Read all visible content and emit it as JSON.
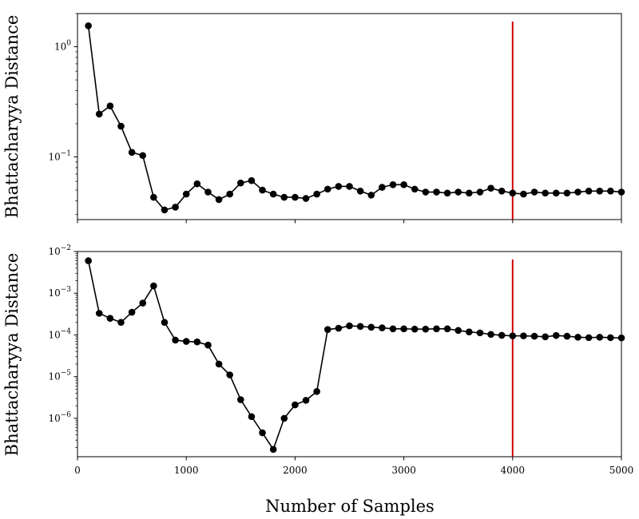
{
  "chart_data": [
    {
      "type": "line",
      "ylabel": "Bhattacharyya Distance",
      "xlabel": "",
      "yscale": "log",
      "xlim": [
        0,
        5000
      ],
      "ylim": [
        0.027,
        2.0
      ],
      "x_ticks_shown_without_labels": [
        0,
        1000,
        2000,
        3000,
        4000,
        5000
      ],
      "y_ticks": [
        {
          "value": 1,
          "label": "10",
          "exp": "0"
        },
        {
          "value": 0.1,
          "label": "10",
          "exp": "−1"
        }
      ],
      "marker": "circle",
      "series_color": "#000000",
      "vline": {
        "x": 4000,
        "color": "#cc0000"
      },
      "series": [
        {
          "x": [
            100,
            200,
            300,
            400,
            500,
            600,
            700,
            800,
            900,
            1000,
            1100,
            1200,
            1300,
            1400,
            1500,
            1600,
            1700,
            1800,
            1900,
            2000,
            2100,
            2200,
            2300,
            2400,
            2500,
            2600,
            2700,
            2800,
            2900,
            3000,
            3100,
            3200,
            3300,
            3400,
            3500,
            3600,
            3700,
            3800,
            3900,
            4000,
            4100,
            4200,
            4300,
            4400,
            4500,
            4600,
            4700,
            4800,
            4900,
            5000
          ],
          "values": [
            1.55,
            0.245,
            0.29,
            0.19,
            0.11,
            0.103,
            0.043,
            0.033,
            0.035,
            0.046,
            0.057,
            0.048,
            0.041,
            0.046,
            0.058,
            0.061,
            0.05,
            0.046,
            0.043,
            0.043,
            0.042,
            0.046,
            0.051,
            0.054,
            0.054,
            0.049,
            0.045,
            0.053,
            0.056,
            0.056,
            0.051,
            0.048,
            0.048,
            0.047,
            0.048,
            0.047,
            0.048,
            0.052,
            0.049,
            0.047,
            0.046,
            0.048,
            0.047,
            0.047,
            0.047,
            0.048,
            0.049,
            0.049,
            0.049,
            0.048
          ]
        }
      ]
    },
    {
      "type": "line",
      "ylabel": "Bhattacharyya Distance",
      "xlabel": "Number of Samples",
      "yscale": "log",
      "xlim": [
        0,
        5000
      ],
      "ylim": [
        1.2e-07,
        0.01
      ],
      "x_ticks": [
        "0",
        "1000",
        "2000",
        "3000",
        "4000",
        "5000"
      ],
      "y_ticks": [
        {
          "value": 0.01,
          "label": "10",
          "exp": "−2"
        },
        {
          "value": 0.001,
          "label": "10",
          "exp": "−3"
        },
        {
          "value": 0.0001,
          "label": "10",
          "exp": "−4"
        },
        {
          "value": 1e-05,
          "label": "10",
          "exp": "−5"
        },
        {
          "value": 1e-06,
          "label": "10",
          "exp": "−6"
        }
      ],
      "marker": "circle",
      "series_color": "#000000",
      "vline": {
        "x": 4000,
        "color": "#cc0000"
      },
      "series": [
        {
          "x": [
            100,
            200,
            300,
            400,
            500,
            600,
            700,
            800,
            900,
            1000,
            1100,
            1200,
            1300,
            1400,
            1500,
            1600,
            1700,
            1800,
            1900,
            2000,
            2100,
            2200,
            2300,
            2400,
            2500,
            2600,
            2700,
            2800,
            2900,
            3000,
            3100,
            3200,
            3300,
            3400,
            3500,
            3600,
            3700,
            3800,
            3900,
            4000,
            4100,
            4200,
            4300,
            4400,
            4500,
            4600,
            4700,
            4800,
            4900,
            5000
          ],
          "values": [
            0.006,
            0.00033,
            0.00025,
            0.0002,
            0.00035,
            0.00058,
            0.0015,
            0.0002,
            7.5e-05,
            7e-05,
            6.8e-05,
            5.7e-05,
            2e-05,
            1.1e-05,
            2.8e-06,
            1.1e-06,
            4.5e-07,
            1.8e-07,
            1e-06,
            2.1e-06,
            2.7e-06,
            4.4e-06,
            0.000135,
            0.000145,
            0.000165,
            0.00016,
            0.000153,
            0.000148,
            0.00014,
            0.00014,
            0.000138,
            0.000138,
            0.00014,
            0.00014,
            0.000128,
            0.000118,
            0.000112,
            0.000103,
            9.8e-05,
            9.5e-05,
            9.5e-05,
            9.3e-05,
            9e-05,
            9.7e-05,
            9.3e-05,
            8.8e-05,
            8.6e-05,
            8.8e-05,
            8.6e-05,
            8.5e-05
          ]
        }
      ]
    }
  ]
}
